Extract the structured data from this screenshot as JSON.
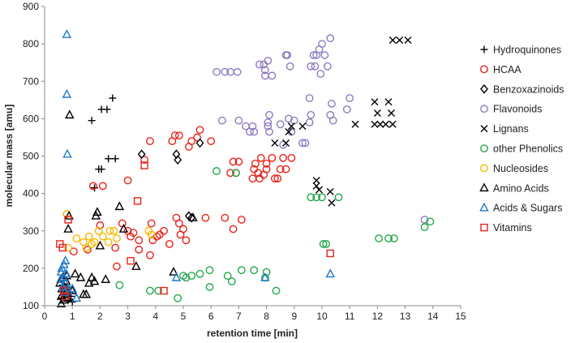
{
  "chart_data": {
    "type": "scatter",
    "title": "",
    "xlabel": "retention time [min]",
    "ylabel": "molecular mass [amu]",
    "xlim": [
      0,
      15
    ],
    "ylim": [
      100,
      900
    ],
    "xticks": [
      "0",
      "1",
      "2",
      "3",
      "4",
      "5",
      "6",
      "7",
      "8",
      "9",
      "10",
      "11",
      "12",
      "13",
      "14",
      "15"
    ],
    "yticks": [
      "100",
      "200",
      "300",
      "400",
      "500",
      "600",
      "700",
      "800",
      "900"
    ],
    "grid": false,
    "legend_position": "right",
    "series": [
      {
        "name": "Hydroquinones",
        "marker": "plus",
        "color": "#000000",
        "points": [
          [
            1.7,
            595
          ],
          [
            1.8,
            415
          ],
          [
            1.95,
            465
          ],
          [
            2.05,
            465
          ],
          [
            2.05,
            625
          ],
          [
            2.25,
            625
          ],
          [
            2.3,
            493
          ],
          [
            2.45,
            655
          ],
          [
            2.55,
            493
          ],
          [
            0.6,
            120
          ],
          [
            0.65,
            155
          ],
          [
            0.7,
            140
          ],
          [
            0.72,
            130
          ],
          [
            0.8,
            150
          ],
          [
            0.85,
            115
          ],
          [
            0.9,
            135
          ],
          [
            0.95,
            125
          ],
          [
            1.0,
            110
          ]
        ]
      },
      {
        "name": "HCAA",
        "marker": "circle",
        "color": "#e8221a",
        "points": [
          [
            1.05,
            245
          ],
          [
            1.55,
            250
          ],
          [
            1.75,
            420
          ],
          [
            2.1,
            420
          ],
          [
            2.0,
            315
          ],
          [
            2.55,
            255
          ],
          [
            2.6,
            205
          ],
          [
            2.8,
            320
          ],
          [
            3.0,
            300
          ],
          [
            3.0,
            435
          ],
          [
            3.1,
            285
          ],
          [
            3.2,
            295
          ],
          [
            3.4,
            250
          ],
          [
            3.4,
            275
          ],
          [
            3.6,
            490
          ],
          [
            3.8,
            540
          ],
          [
            3.8,
            235
          ],
          [
            3.85,
            320
          ],
          [
            3.9,
            275
          ],
          [
            4.05,
            285
          ],
          [
            4.15,
            290
          ],
          [
            4.3,
            300
          ],
          [
            4.5,
            265
          ],
          [
            4.6,
            540
          ],
          [
            4.7,
            555
          ],
          [
            4.75,
            335
          ],
          [
            4.85,
            555
          ],
          [
            4.85,
            320
          ],
          [
            4.9,
            290
          ],
          [
            5.0,
            305
          ],
          [
            5.1,
            275
          ],
          [
            5.2,
            525
          ],
          [
            5.3,
            540
          ],
          [
            5.5,
            550
          ],
          [
            5.6,
            570
          ],
          [
            5.8,
            335
          ],
          [
            6.0,
            540
          ],
          [
            6.5,
            335
          ],
          [
            6.7,
            455
          ],
          [
            6.8,
            305
          ],
          [
            6.8,
            485
          ],
          [
            6.9,
            455
          ],
          [
            7.0,
            485
          ],
          [
            7.1,
            330
          ],
          [
            7.5,
            440
          ],
          [
            7.55,
            465
          ],
          [
            7.6,
            480
          ],
          [
            7.7,
            455
          ],
          [
            7.75,
            440
          ],
          [
            7.8,
            495
          ],
          [
            7.9,
            450
          ],
          [
            8.0,
            465
          ],
          [
            8.0,
            480
          ],
          [
            8.2,
            495
          ],
          [
            8.3,
            440
          ],
          [
            8.4,
            440
          ],
          [
            8.5,
            465
          ],
          [
            8.6,
            495
          ],
          [
            8.7,
            465
          ],
          [
            8.9,
            495
          ]
        ]
      },
      {
        "name": "Benzoxazinoids",
        "marker": "diamond",
        "color": "#000000",
        "points": [
          [
            3.5,
            505
          ],
          [
            4.75,
            505
          ],
          [
            4.8,
            490
          ],
          [
            5.2,
            340
          ],
          [
            5.3,
            335
          ],
          [
            5.6,
            535
          ]
        ]
      },
      {
        "name": "Flavonoids",
        "marker": "circle",
        "color": "#8f7cbf",
        "points": [
          [
            6.2,
            725
          ],
          [
            6.4,
            595
          ],
          [
            6.5,
            725
          ],
          [
            6.7,
            725
          ],
          [
            6.95,
            725
          ],
          [
            7.0,
            595
          ],
          [
            7.25,
            580
          ],
          [
            7.4,
            565
          ],
          [
            7.5,
            580
          ],
          [
            7.55,
            565
          ],
          [
            7.75,
            745
          ],
          [
            7.9,
            745
          ],
          [
            7.95,
            730
          ],
          [
            7.95,
            715
          ],
          [
            8.05,
            755
          ],
          [
            8.05,
            590
          ],
          [
            8.05,
            580
          ],
          [
            8.1,
            610
          ],
          [
            8.1,
            565
          ],
          [
            8.2,
            715
          ],
          [
            8.5,
            585
          ],
          [
            8.6,
            530
          ],
          [
            8.7,
            770
          ],
          [
            8.75,
            770
          ],
          [
            8.8,
            600
          ],
          [
            8.85,
            740
          ],
          [
            8.9,
            565
          ],
          [
            9.0,
            595
          ],
          [
            9.3,
            535
          ],
          [
            9.4,
            535
          ],
          [
            9.55,
            590
          ],
          [
            9.55,
            655
          ],
          [
            9.6,
            610
          ],
          [
            9.6,
            740
          ],
          [
            9.7,
            770
          ],
          [
            9.75,
            740
          ],
          [
            9.8,
            770
          ],
          [
            9.9,
            785
          ],
          [
            9.95,
            720
          ],
          [
            10.0,
            800
          ],
          [
            10.1,
            770
          ],
          [
            10.2,
            740
          ],
          [
            10.3,
            815
          ],
          [
            10.3,
            610
          ],
          [
            10.35,
            640
          ],
          [
            10.4,
            595
          ],
          [
            10.9,
            625
          ],
          [
            11.0,
            655
          ],
          [
            13.7,
            330
          ]
        ]
      },
      {
        "name": "Lignans",
        "marker": "x",
        "color": "#000000",
        "points": [
          [
            8.3,
            535
          ],
          [
            8.7,
            535
          ],
          [
            8.8,
            565
          ],
          [
            8.9,
            580
          ],
          [
            9.3,
            580
          ],
          [
            9.8,
            420
          ],
          [
            9.8,
            435
          ],
          [
            9.9,
            410
          ],
          [
            10.3,
            405
          ],
          [
            10.35,
            375
          ],
          [
            11.2,
            585
          ],
          [
            11.9,
            645
          ],
          [
            11.9,
            585
          ],
          [
            12.0,
            615
          ],
          [
            12.1,
            585
          ],
          [
            12.3,
            585
          ],
          [
            12.4,
            645
          ],
          [
            12.5,
            615
          ],
          [
            12.55,
            585
          ],
          [
            12.55,
            810
          ],
          [
            12.8,
            810
          ],
          [
            13.1,
            810
          ]
        ]
      },
      {
        "name": "other Phenolics",
        "marker": "circle",
        "color": "#22a84a",
        "points": [
          [
            0.75,
            145
          ],
          [
            2.7,
            155
          ],
          [
            3.8,
            140
          ],
          [
            4.1,
            140
          ],
          [
            4.8,
            120
          ],
          [
            5.0,
            180
          ],
          [
            5.1,
            175
          ],
          [
            5.3,
            180
          ],
          [
            5.6,
            185
          ],
          [
            5.95,
            195
          ],
          [
            5.95,
            150
          ],
          [
            6.2,
            460
          ],
          [
            6.6,
            180
          ],
          [
            6.75,
            165
          ],
          [
            6.9,
            455
          ],
          [
            7.1,
            195
          ],
          [
            7.55,
            195
          ],
          [
            7.95,
            175
          ],
          [
            8.0,
            190
          ],
          [
            8.35,
            140
          ],
          [
            9.6,
            390
          ],
          [
            9.8,
            390
          ],
          [
            10.0,
            390
          ],
          [
            10.05,
            265
          ],
          [
            10.15,
            265
          ],
          [
            10.6,
            390
          ],
          [
            12.05,
            280
          ],
          [
            12.4,
            280
          ],
          [
            12.6,
            280
          ],
          [
            13.7,
            310
          ],
          [
            13.9,
            325
          ]
        ]
      },
      {
        "name": "Nucleosides",
        "marker": "circle",
        "color": "#f5b800",
        "points": [
          [
            0.8,
            345
          ],
          [
            0.85,
            255
          ],
          [
            1.15,
            280
          ],
          [
            1.4,
            270
          ],
          [
            1.5,
            255
          ],
          [
            1.6,
            285
          ],
          [
            1.7,
            265
          ],
          [
            1.8,
            270
          ],
          [
            1.95,
            300
          ],
          [
            2.1,
            285
          ],
          [
            2.3,
            270
          ],
          [
            2.35,
            300
          ],
          [
            2.5,
            300
          ],
          [
            2.6,
            280
          ],
          [
            3.75,
            300
          ],
          [
            3.85,
            290
          ]
        ]
      },
      {
        "name": "Amino Acids",
        "marker": "triangle",
        "color": "#000000",
        "points": [
          [
            0.55,
            160
          ],
          [
            0.6,
            105
          ],
          [
            0.6,
            125
          ],
          [
            0.62,
            145
          ],
          [
            0.65,
            175
          ],
          [
            0.7,
            115
          ],
          [
            0.72,
            150
          ],
          [
            0.75,
            130
          ],
          [
            0.78,
            165
          ],
          [
            0.8,
            180
          ],
          [
            0.82,
            120
          ],
          [
            0.85,
            305
          ],
          [
            0.88,
            340
          ],
          [
            0.9,
            610
          ],
          [
            1.0,
            140
          ],
          [
            1.1,
            185
          ],
          [
            1.3,
            175
          ],
          [
            1.4,
            130
          ],
          [
            1.5,
            130
          ],
          [
            1.6,
            160
          ],
          [
            1.7,
            175
          ],
          [
            1.8,
            165
          ],
          [
            1.85,
            340
          ],
          [
            1.9,
            350
          ],
          [
            2.0,
            260
          ],
          [
            2.2,
            170
          ],
          [
            2.7,
            365
          ],
          [
            2.85,
            305
          ],
          [
            3.3,
            205
          ],
          [
            4.65,
            190
          ],
          [
            5.35,
            335
          ]
        ]
      },
      {
        "name": "Acids & Sugars",
        "marker": "triangle",
        "color": "#1f78c8",
        "points": [
          [
            0.58,
            170
          ],
          [
            0.6,
            190
          ],
          [
            0.62,
            200
          ],
          [
            0.65,
            150
          ],
          [
            0.68,
            175
          ],
          [
            0.7,
            210
          ],
          [
            0.72,
            135
          ],
          [
            0.75,
            220
          ],
          [
            0.75,
            160
          ],
          [
            0.78,
            185
          ],
          [
            0.8,
            665
          ],
          [
            0.82,
            505
          ],
          [
            0.8,
            825
          ],
          [
            0.85,
            140
          ],
          [
            1.0,
            145
          ],
          [
            1.15,
            120
          ],
          [
            4.75,
            175
          ],
          [
            7.95,
            175
          ],
          [
            10.3,
            185
          ]
        ]
      },
      {
        "name": "Vitamins",
        "marker": "square",
        "color": "#e8221a",
        "points": [
          [
            0.55,
            265
          ],
          [
            0.65,
            255
          ],
          [
            0.7,
            140
          ],
          [
            0.75,
            125
          ],
          [
            0.85,
            330
          ],
          [
            3.1,
            220
          ],
          [
            3.35,
            380
          ],
          [
            3.6,
            475
          ],
          [
            4.3,
            140
          ],
          [
            10.3,
            240
          ]
        ]
      }
    ]
  }
}
